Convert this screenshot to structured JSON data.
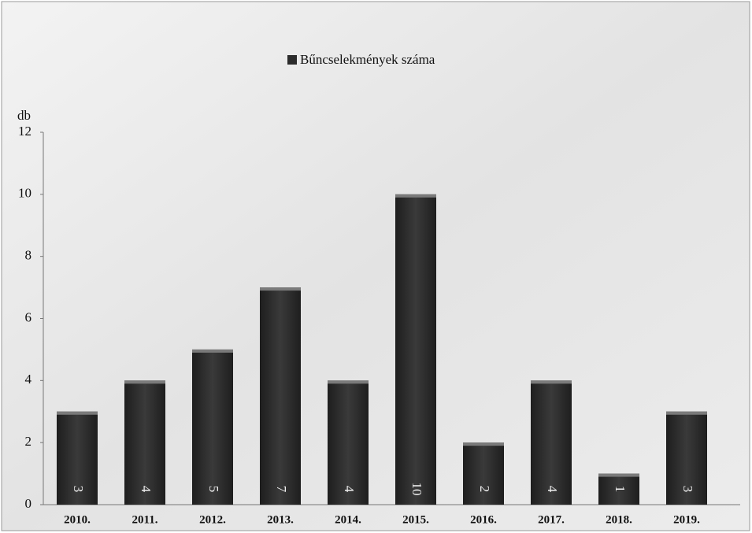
{
  "chart_data": {
    "type": "bar",
    "legend_title": "Bűncselekmények száma",
    "y_label": "db",
    "categories": [
      "2010.",
      "2011.",
      "2012.",
      "2013.",
      "2014.",
      "2015.",
      "2016.",
      "2017.",
      "2018.",
      "2019."
    ],
    "values": [
      3,
      4,
      5,
      7,
      4,
      10,
      2,
      4,
      1,
      3
    ],
    "color": "#2b2b2b",
    "ylim": [
      0,
      12
    ],
    "yticks": [
      0,
      2,
      4,
      6,
      8,
      10,
      12
    ],
    "legend": "top"
  }
}
